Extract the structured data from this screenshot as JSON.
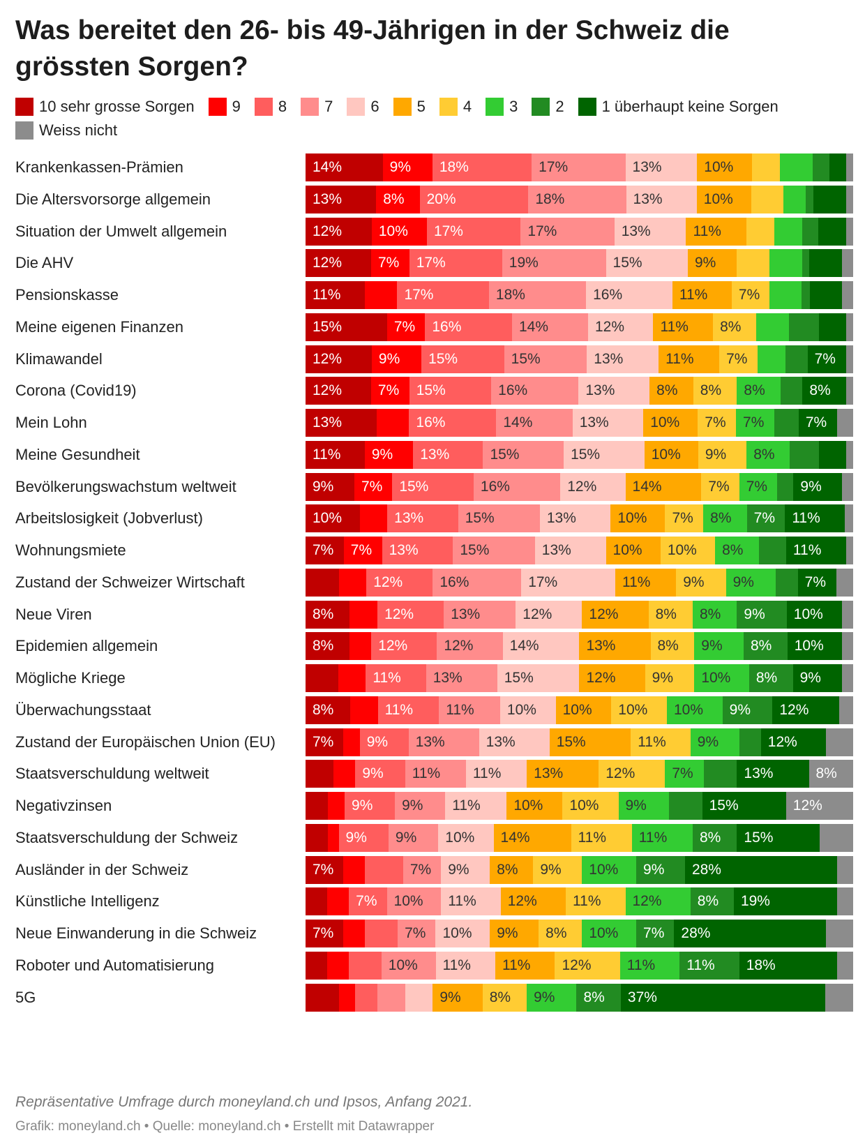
{
  "title": "Was bereitet den 26- bis 49-Jährigen in der Schweiz die grössten Sorgen?",
  "legend": [
    {
      "label": "10 sehr grosse Sorgen",
      "color": "#c00000"
    },
    {
      "label": "9",
      "color": "#ff0000"
    },
    {
      "label": "8",
      "color": "#ff5d5d"
    },
    {
      "label": "7",
      "color": "#ff8c8c"
    },
    {
      "label": "6",
      "color": "#ffc7c0"
    },
    {
      "label": "5",
      "color": "#ffa800"
    },
    {
      "label": "4",
      "color": "#ffcc33"
    },
    {
      "label": "3",
      "color": "#33cc33"
    },
    {
      "label": "2",
      "color": "#228b22"
    },
    {
      "label": "1 überhaupt keine Sorgen",
      "color": "#006400"
    },
    {
      "label": "Weiss nicht",
      "color": "#8c8c8c"
    }
  ],
  "chart_data": {
    "type": "bar",
    "orientation": "horizontal",
    "stacked": true,
    "unit": "%",
    "series_labels": [
      "10 sehr grosse Sorgen",
      "9",
      "8",
      "7",
      "6",
      "5",
      "4",
      "3",
      "2",
      "1 überhaupt keine Sorgen",
      "Weiss nicht"
    ],
    "categories": [
      "Krankenkassen-Prämien",
      "Die Altersvorsorge allgemein",
      "Situation der Umwelt allgemein",
      "Die AHV",
      "Pensionskasse",
      "Meine eigenen Finanzen",
      "Klimawandel",
      "Corona (Covid19)",
      "Mein Lohn",
      "Meine Gesundheit",
      "Bevölkerungswachstum weltweit",
      "Arbeitslosigkeit (Jobverlust)",
      "Wohnungsmiete",
      "Zustand der Schweizer Wirtschaft",
      "Neue Viren",
      "Epidemien allgemein",
      "Mögliche Kriege",
      "Überwachungsstaat",
      "Zustand der Europäischen Union (EU)",
      "Staatsverschuldung weltweit",
      "Negativzinsen",
      "Staatsverschuldung der Schweiz",
      "Ausländer in der Schweiz",
      "Künstliche Intelligenz",
      "Neue Einwanderung in die Schweiz",
      "Roboter und Automatisierung",
      "5G"
    ],
    "values": [
      [
        14,
        9,
        18,
        17,
        13,
        10,
        5,
        6,
        3,
        3,
        0.5
      ],
      [
        13,
        8,
        20,
        18,
        13,
        10,
        6,
        4,
        1.5,
        6,
        1
      ],
      [
        12,
        10,
        17,
        17,
        13,
        11,
        5,
        5,
        3,
        5,
        0.5
      ],
      [
        12,
        7,
        17,
        19,
        15,
        9,
        6,
        6,
        1,
        6,
        2
      ],
      [
        11,
        6,
        17,
        18,
        16,
        11,
        7,
        6,
        1.5,
        6,
        2
      ],
      [
        15,
        7,
        16,
        14,
        12,
        11,
        8,
        6,
        5.5,
        5,
        1
      ],
      [
        12,
        9,
        15,
        15,
        13,
        11,
        7,
        5,
        4,
        7,
        1
      ],
      [
        12,
        7,
        15,
        16,
        13,
        8,
        8,
        8,
        4,
        8,
        1
      ],
      [
        13,
        6,
        16,
        14,
        13,
        10,
        7,
        7,
        4.5,
        7,
        3
      ],
      [
        11,
        9,
        13,
        15,
        15,
        10,
        9,
        8,
        5.5,
        5,
        0.5
      ],
      [
        9,
        7,
        15,
        16,
        12,
        14,
        7,
        7,
        3,
        9,
        2
      ],
      [
        10,
        5,
        13,
        15,
        13,
        10,
        7,
        8,
        7,
        11,
        1.5
      ],
      [
        7,
        7,
        13,
        15,
        13,
        10,
        10,
        8,
        5,
        11,
        1
      ],
      [
        6,
        5,
        12,
        16,
        17,
        11,
        9,
        9,
        4,
        7,
        3
      ],
      [
        8,
        5,
        12,
        13,
        12,
        12,
        8,
        8,
        9,
        10,
        2
      ],
      [
        8,
        4,
        12,
        12,
        14,
        13,
        8,
        9,
        8,
        10,
        2
      ],
      [
        6,
        5,
        11,
        13,
        15,
        12,
        9,
        10,
        8,
        9,
        2
      ],
      [
        8,
        5,
        11,
        11,
        10,
        10,
        10,
        10,
        9,
        12,
        2.5
      ],
      [
        7,
        3,
        9,
        13,
        13,
        15,
        11,
        9,
        4,
        12,
        5
      ],
      [
        5,
        4,
        9,
        11,
        11,
        13,
        12,
        7,
        6,
        13,
        8
      ],
      [
        4,
        3,
        9,
        9,
        11,
        10,
        10,
        9,
        6,
        15,
        12
      ],
      [
        4,
        2,
        9,
        9,
        10,
        14,
        11,
        11,
        8,
        15,
        6
      ],
      [
        7,
        4,
        7,
        7,
        9,
        8,
        9,
        10,
        9,
        28,
        3
      ],
      [
        4,
        4,
        7,
        10,
        11,
        12,
        11,
        12,
        8,
        19,
        3
      ],
      [
        7,
        4,
        6,
        7,
        10,
        9,
        8,
        10,
        7,
        28,
        5
      ],
      [
        4,
        4,
        6,
        10,
        11,
        11,
        12,
        11,
        11,
        18,
        3
      ],
      [
        6,
        3,
        4,
        5,
        5,
        9,
        8,
        9,
        8,
        37,
        5
      ]
    ],
    "labels": [
      [
        "14%",
        "9%",
        "18%",
        "17%",
        "13%",
        "10%",
        "",
        "",
        "",
        "",
        ""
      ],
      [
        "13%",
        "8%",
        "20%",
        "18%",
        "13%",
        "10%",
        "",
        "",
        "",
        "",
        ""
      ],
      [
        "12%",
        "10%",
        "17%",
        "17%",
        "13%",
        "11%",
        "",
        "",
        "",
        "",
        ""
      ],
      [
        "12%",
        "7%",
        "17%",
        "19%",
        "15%",
        "9%",
        "",
        "",
        "",
        "",
        ""
      ],
      [
        "11%",
        "",
        "17%",
        "18%",
        "16%",
        "11%",
        "7%",
        "",
        "",
        "",
        ""
      ],
      [
        "15%",
        "7%",
        "16%",
        "14%",
        "12%",
        "11%",
        "8%",
        "",
        "",
        "",
        ""
      ],
      [
        "12%",
        "9%",
        "15%",
        "15%",
        "13%",
        "11%",
        "7%",
        "",
        "",
        "7%",
        ""
      ],
      [
        "12%",
        "7%",
        "15%",
        "16%",
        "13%",
        "8%",
        "8%",
        "8%",
        "",
        "8%",
        ""
      ],
      [
        "13%",
        "",
        "16%",
        "14%",
        "13%",
        "10%",
        "7%",
        "7%",
        "",
        "7%",
        ""
      ],
      [
        "11%",
        "9%",
        "13%",
        "15%",
        "15%",
        "10%",
        "9%",
        "8%",
        "",
        "",
        ""
      ],
      [
        "9%",
        "7%",
        "15%",
        "16%",
        "12%",
        "14%",
        "7%",
        "7%",
        "",
        "9%",
        ""
      ],
      [
        "10%",
        "",
        "13%",
        "15%",
        "13%",
        "10%",
        "7%",
        "8%",
        "7%",
        "11%",
        ""
      ],
      [
        "7%",
        "7%",
        "13%",
        "15%",
        "13%",
        "10%",
        "10%",
        "8%",
        "",
        "11%",
        ""
      ],
      [
        "",
        "",
        "12%",
        "16%",
        "17%",
        "11%",
        "9%",
        "9%",
        "",
        "7%",
        ""
      ],
      [
        "8%",
        "",
        "12%",
        "13%",
        "12%",
        "12%",
        "8%",
        "8%",
        "9%",
        "10%",
        ""
      ],
      [
        "8%",
        "",
        "12%",
        "12%",
        "14%",
        "13%",
        "8%",
        "9%",
        "8%",
        "10%",
        ""
      ],
      [
        "",
        "",
        "11%",
        "13%",
        "15%",
        "12%",
        "9%",
        "10%",
        "8%",
        "9%",
        ""
      ],
      [
        "8%",
        "",
        "11%",
        "11%",
        "10%",
        "10%",
        "10%",
        "10%",
        "9%",
        "12%",
        ""
      ],
      [
        "7%",
        "",
        "9%",
        "13%",
        "13%",
        "15%",
        "11%",
        "9%",
        "",
        "12%",
        ""
      ],
      [
        "",
        "",
        "9%",
        "11%",
        "11%",
        "13%",
        "12%",
        "7%",
        "",
        "13%",
        "8%"
      ],
      [
        "",
        "",
        "9%",
        "9%",
        "11%",
        "10%",
        "10%",
        "9%",
        "",
        "15%",
        "12%"
      ],
      [
        "",
        "",
        "9%",
        "9%",
        "10%",
        "14%",
        "11%",
        "11%",
        "8%",
        "15%",
        ""
      ],
      [
        "7%",
        "",
        "",
        "7%",
        "9%",
        "8%",
        "9%",
        "10%",
        "9%",
        "28%",
        ""
      ],
      [
        "",
        "",
        "7%",
        "10%",
        "11%",
        "12%",
        "11%",
        "12%",
        "8%",
        "19%",
        ""
      ],
      [
        "7%",
        "",
        "",
        "7%",
        "10%",
        "9%",
        "8%",
        "10%",
        "7%",
        "28%",
        ""
      ],
      [
        "",
        "",
        "",
        "10%",
        "11%",
        "11%",
        "12%",
        "11%",
        "11%",
        "18%",
        ""
      ],
      [
        "",
        "",
        "",
        "",
        "",
        "9%",
        "8%",
        "9%",
        "8%",
        "37%",
        ""
      ]
    ]
  },
  "label_colors": [
    "#ffffff",
    "#ffffff",
    "#ffffff",
    "#333333",
    "#333333",
    "#333333",
    "#333333",
    "#333333",
    "#ffffff",
    "#ffffff",
    "#ffffff"
  ],
  "note": "Repräsentative Umfrage durch moneyland.ch und Ipsos, Anfang 2021.",
  "credit": "Grafik: moneyland.ch • Quelle: moneyland.ch • Erstellt mit Datawrapper"
}
